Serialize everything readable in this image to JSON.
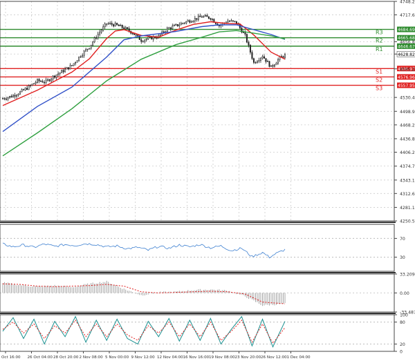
{
  "chart_data": [
    {
      "type": "candlestick",
      "panel": "price",
      "ylim": [
        4250.5,
        4748.2
      ],
      "y_ticks": [
        "4748.20",
        "4717.60",
        "4656.85",
        "4628.82",
        "4595.20",
        "4530.40",
        "4498.90",
        "4468.20",
        "4436.80",
        "4406.20",
        "4374.70",
        "4343.10",
        "4312.60",
        "4281.10",
        "4250.50"
      ],
      "x_labels": [
        "Oct 16:00",
        "26 Oct 04:00",
        "28 Oct 20:00",
        "2 Nov 08:00",
        "5 Nov 00:00",
        "9 Nov 12:00",
        "12 Nov 04:00",
        "16 Nov 16:00",
        "19 Nov 08:00",
        "23 Nov 20:00",
        "26 Nov 12:00",
        "1 Dec 04:00"
      ],
      "close_path": [
        [
          0,
          4528
        ],
        [
          5,
          4533
        ],
        [
          10,
          4542
        ],
        [
          15,
          4554
        ],
        [
          20,
          4568
        ],
        [
          25,
          4566
        ],
        [
          30,
          4580
        ],
        [
          35,
          4591
        ],
        [
          40,
          4603
        ],
        [
          45,
          4626
        ],
        [
          50,
          4645
        ],
        [
          55,
          4674
        ],
        [
          60,
          4698
        ],
        [
          65,
          4695
        ],
        [
          70,
          4688
        ],
        [
          75,
          4677
        ],
        [
          80,
          4660
        ],
        [
          85,
          4665
        ],
        [
          90,
          4669
        ],
        [
          95,
          4686
        ],
        [
          100,
          4693
        ],
        [
          105,
          4701
        ],
        [
          110,
          4707
        ],
        [
          115,
          4714
        ],
        [
          120,
          4711
        ],
        [
          125,
          4693
        ],
        [
          130,
          4704
        ],
        [
          135,
          4700
        ],
        [
          140,
          4670
        ],
        [
          145,
          4609
        ],
        [
          150,
          4625
        ],
        [
          155,
          4599
        ],
        [
          160,
          4620
        ],
        [
          163,
          4626
        ]
      ],
      "last_price": "4628.82",
      "levels": [
        {
          "name": "R3",
          "value": 4684.69,
          "label": "4684.69",
          "color": "#2e8b2e"
        },
        {
          "name": "R2",
          "value": 4665.68,
          "label": "4665.68",
          "color": "#2e8b2e"
        },
        {
          "name": "R1",
          "value": 4646.67,
          "label": "4646.67",
          "color": "#2e8b2e"
        },
        {
          "name": "S1",
          "value": 4595.97,
          "label": "4595.97",
          "color": "#e02020"
        },
        {
          "name": "S2",
          "value": 4576.96,
          "label": "4576.96",
          "color": "#e02020"
        },
        {
          "name": "S3",
          "value": 4557.95,
          "label": "4557.95",
          "color": "#e02020"
        }
      ],
      "moving_averages": [
        {
          "color": "#e02020",
          "path": [
            [
              0,
              4512
            ],
            [
              20,
              4547
            ],
            [
              40,
              4588
            ],
            [
              50,
              4618
            ],
            [
              60,
              4664
            ],
            [
              65,
              4681
            ],
            [
              70,
              4684
            ],
            [
              80,
              4671
            ],
            [
              90,
              4667
            ],
            [
              100,
              4683
            ],
            [
              110,
              4696
            ],
            [
              120,
              4702
            ],
            [
              130,
              4698
            ],
            [
              137,
              4697
            ],
            [
              145,
              4672
            ],
            [
              155,
              4633
            ],
            [
              163,
              4617
            ]
          ]
        },
        {
          "color": "#3050c8",
          "path": [
            [
              0,
              4453
            ],
            [
              20,
              4510
            ],
            [
              40,
              4554
            ],
            [
              60,
              4622
            ],
            [
              70,
              4661
            ],
            [
              80,
              4670
            ],
            [
              90,
              4675
            ],
            [
              100,
              4680
            ],
            [
              115,
              4691
            ],
            [
              125,
              4695
            ],
            [
              135,
              4695
            ],
            [
              145,
              4684
            ],
            [
              155,
              4673
            ],
            [
              163,
              4662
            ]
          ]
        },
        {
          "color": "#30a040",
          "path": [
            [
              0,
              4398
            ],
            [
              20,
              4450
            ],
            [
              40,
              4505
            ],
            [
              60,
              4568
            ],
            [
              80,
              4617
            ],
            [
              100,
              4650
            ],
            [
              115,
              4667
            ],
            [
              125,
              4679
            ],
            [
              135,
              4682
            ],
            [
              145,
              4676
            ],
            [
              155,
              4670
            ],
            [
              163,
              4663
            ]
          ]
        }
      ],
      "line_colors": {
        "candles": "#222222",
        "axis": "#444444",
        "text": "#333333"
      }
    },
    {
      "type": "line",
      "panel": "rsi",
      "ylim": [
        0,
        100
      ],
      "y_ticks": [
        "70",
        "30"
      ],
      "levels": [
        70,
        30
      ],
      "path": [
        [
          0,
          58
        ],
        [
          6,
          52
        ],
        [
          12,
          56
        ],
        [
          18,
          51
        ],
        [
          24,
          58
        ],
        [
          30,
          53
        ],
        [
          36,
          57
        ],
        [
          42,
          55
        ],
        [
          48,
          59
        ],
        [
          54,
          57
        ],
        [
          60,
          52
        ],
        [
          66,
          54
        ],
        [
          72,
          48
        ],
        [
          78,
          51
        ],
        [
          84,
          45
        ],
        [
          90,
          53
        ],
        [
          96,
          49
        ],
        [
          102,
          56
        ],
        [
          108,
          52
        ],
        [
          114,
          57
        ],
        [
          120,
          50
        ],
        [
          126,
          54
        ],
        [
          132,
          44
        ],
        [
          138,
          49
        ],
        [
          144,
          31
        ],
        [
          150,
          40
        ],
        [
          154,
          30
        ],
        [
          158,
          38
        ],
        [
          163,
          46
        ]
      ],
      "color": "#3c7fd0"
    },
    {
      "type": "bar",
      "panel": "macd",
      "ylim": [
        -33.487,
        33.209
      ],
      "y_ticks": [
        "33.209",
        "0.00",
        "-33.487"
      ],
      "hist_path": [
        [
          0,
          18
        ],
        [
          10,
          14
        ],
        [
          20,
          11
        ],
        [
          30,
          13
        ],
        [
          40,
          10
        ],
        [
          50,
          16
        ],
        [
          60,
          20
        ],
        [
          70,
          7
        ],
        [
          80,
          -4
        ],
        [
          90,
          1
        ],
        [
          100,
          2
        ],
        [
          110,
          5
        ],
        [
          120,
          6
        ],
        [
          130,
          4
        ],
        [
          140,
          -6
        ],
        [
          150,
          -22
        ],
        [
          163,
          -19
        ]
      ],
      "signal_path": [
        [
          0,
          16
        ],
        [
          10,
          15
        ],
        [
          20,
          12
        ],
        [
          30,
          11
        ],
        [
          40,
          12
        ],
        [
          50,
          13
        ],
        [
          60,
          15
        ],
        [
          70,
          12
        ],
        [
          80,
          2
        ],
        [
          90,
          0
        ],
        [
          100,
          1
        ],
        [
          110,
          2
        ],
        [
          120,
          3
        ],
        [
          130,
          2
        ],
        [
          140,
          -2
        ],
        [
          150,
          -16
        ],
        [
          163,
          -19
        ]
      ],
      "colors": {
        "hist": "#9a9a9a",
        "signal": "#e02020"
      }
    },
    {
      "type": "line",
      "panel": "stochastic",
      "ylim": [
        0,
        100
      ],
      "y_ticks": [
        "100",
        "80",
        "20",
        "0"
      ],
      "levels": [
        80,
        20
      ],
      "k_path": [
        [
          0,
          55
        ],
        [
          6,
          92
        ],
        [
          12,
          35
        ],
        [
          18,
          88
        ],
        [
          24,
          20
        ],
        [
          30,
          82
        ],
        [
          36,
          40
        ],
        [
          42,
          95
        ],
        [
          48,
          25
        ],
        [
          54,
          85
        ],
        [
          60,
          30
        ],
        [
          66,
          88
        ],
        [
          72,
          35
        ],
        [
          78,
          20
        ],
        [
          84,
          82
        ],
        [
          90,
          40
        ],
        [
          96,
          90
        ],
        [
          102,
          28
        ],
        [
          108,
          85
        ],
        [
          114,
          30
        ],
        [
          120,
          90
        ],
        [
          126,
          20
        ],
        [
          132,
          60
        ],
        [
          138,
          95
        ],
        [
          144,
          15
        ],
        [
          150,
          88
        ],
        [
          156,
          12
        ],
        [
          163,
          82
        ]
      ],
      "d_path": [
        [
          0,
          60
        ],
        [
          6,
          80
        ],
        [
          12,
          50
        ],
        [
          18,
          75
        ],
        [
          24,
          35
        ],
        [
          30,
          70
        ],
        [
          36,
          50
        ],
        [
          42,
          85
        ],
        [
          48,
          40
        ],
        [
          54,
          75
        ],
        [
          60,
          40
        ],
        [
          66,
          75
        ],
        [
          72,
          45
        ],
        [
          78,
          30
        ],
        [
          84,
          70
        ],
        [
          90,
          50
        ],
        [
          96,
          80
        ],
        [
          102,
          40
        ],
        [
          108,
          75
        ],
        [
          114,
          40
        ],
        [
          120,
          80
        ],
        [
          126,
          30
        ],
        [
          132,
          55
        ],
        [
          138,
          85
        ],
        [
          144,
          25
        ],
        [
          150,
          75
        ],
        [
          156,
          22
        ],
        [
          163,
          65
        ]
      ],
      "colors": {
        "k": "#1a9090",
        "d": "#e02020"
      }
    }
  ]
}
